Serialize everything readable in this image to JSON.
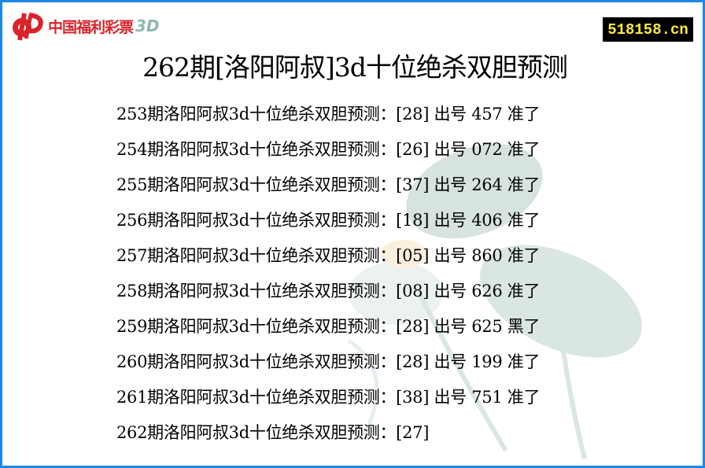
{
  "logo": {
    "text": "中国福利彩票",
    "suffix": "3D"
  },
  "site_badge": "518158.cn",
  "title": "262期[洛阳阿叔]3d十位绝杀双胆预测",
  "rows": [
    {
      "text": "253期洛阳阿叔3d十位绝杀双胆预测：[28] 出号 457 准了"
    },
    {
      "text": "254期洛阳阿叔3d十位绝杀双胆预测：[26] 出号 072 准了"
    },
    {
      "text": "255期洛阳阿叔3d十位绝杀双胆预测：[37] 出号 264 准了"
    },
    {
      "text": "256期洛阳阿叔3d十位绝杀双胆预测：[18] 出号 406 准了"
    },
    {
      "text": "257期洛阳阿叔3d十位绝杀双胆预测：[05] 出号 860 准了"
    },
    {
      "text": "258期洛阳阿叔3d十位绝杀双胆预测：[08] 出号 626 准了"
    },
    {
      "text": "259期洛阳阿叔3d十位绝杀双胆预测：[28] 出号 625 黑了"
    },
    {
      "text": "260期洛阳阿叔3d十位绝杀双胆预测：[28] 出号 199 准了"
    },
    {
      "text": "261期洛阳阿叔3d十位绝杀双胆预测：[38] 出号 751 准了"
    },
    {
      "text": "262期洛阳阿叔3d十位绝杀双胆预测：[27]"
    }
  ],
  "colors": {
    "border": "#1e88e5",
    "logo_red": "#d9232a",
    "badge_bg": "#000000",
    "badge_text": "#ffeb3b"
  }
}
